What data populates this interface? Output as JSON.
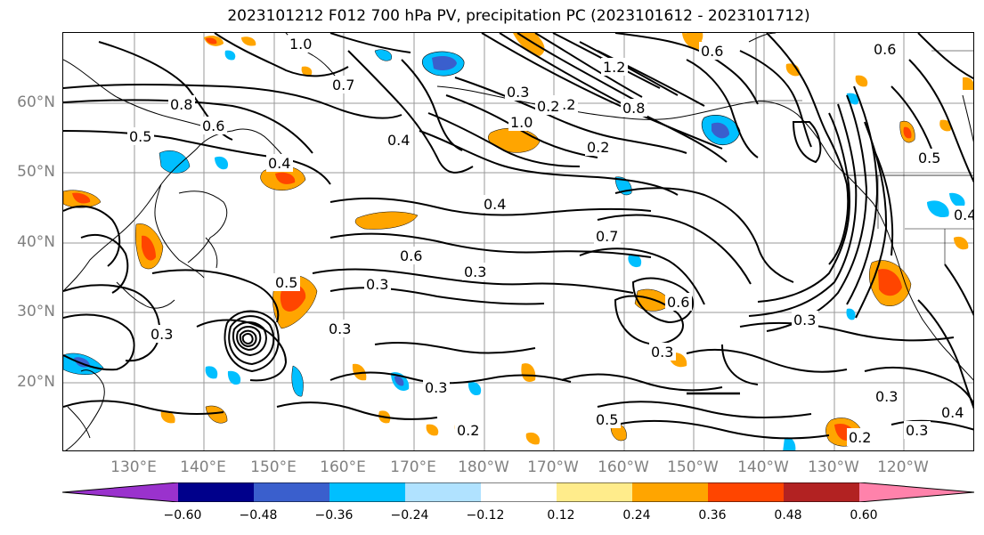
{
  "title": "2023101212 F012 700 hPa PV, precipitation PC (2023101612 - 2023101712)",
  "lat_labels": [
    "60°N",
    "50°N",
    "40°N",
    "30°N",
    "20°N"
  ],
  "lon_labels": [
    "130°E",
    "140°E",
    "150°E",
    "160°E",
    "170°E",
    "180°W",
    "170°W",
    "160°W",
    "150°W",
    "140°W",
    "130°W",
    "120°W"
  ],
  "colorbar": {
    "colors": [
      "#9a32cd",
      "#00008b",
      "#3a5fcd",
      "#00bfff",
      "#b0e2ff",
      "#ffffff",
      "#ffec8b",
      "#ffa500",
      "#ff4500",
      "#b22222",
      "#ff82ab"
    ],
    "ticks": [
      "−0.60",
      "−0.48",
      "−0.36",
      "−0.24",
      "−0.12",
      "0.12",
      "0.24",
      "0.36",
      "0.48",
      "0.60"
    ]
  },
  "contour_labels": [
    "1.0",
    "0.7",
    "0.8",
    "0.6",
    "0.5",
    "0.4",
    "0.3",
    "0.2",
    "1.2",
    "0.6",
    "0.6",
    "0.5",
    "0.4",
    "0.3",
    "0.3",
    "0.3",
    "0.3",
    "0.3",
    "0.3",
    "0.4",
    "0.6",
    "0.7",
    "0.5",
    "0.2",
    "0.3",
    "0.2",
    "0.3",
    "0.8",
    "1.0",
    "0.4",
    "0.3",
    "0.5",
    "0.6",
    "0.2",
    "0.2",
    "0.4"
  ]
}
